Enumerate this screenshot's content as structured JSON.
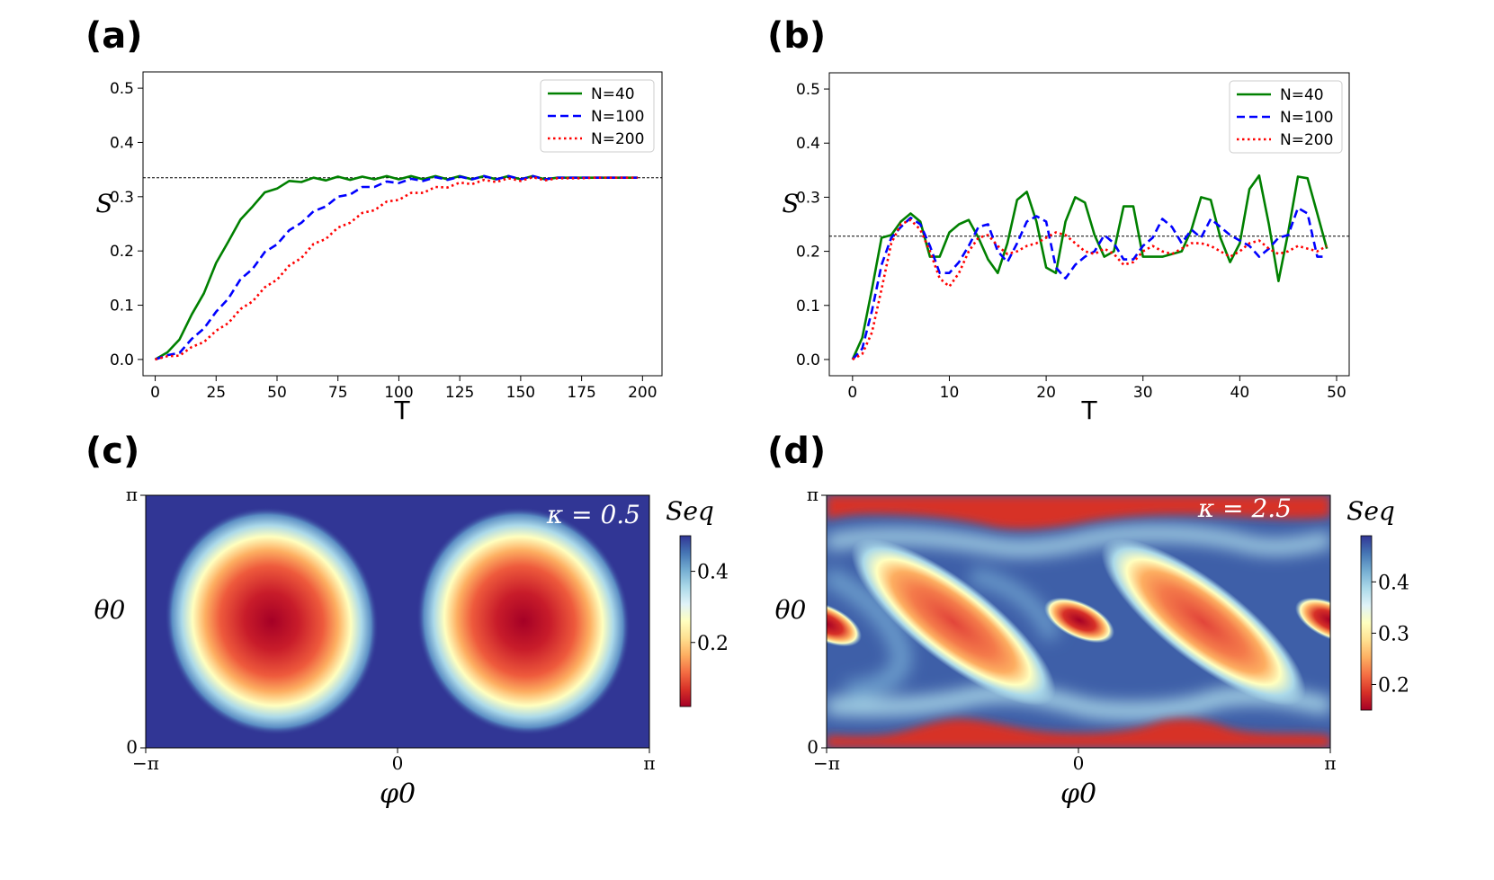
{
  "chart_data": [
    {
      "panel": "(a)",
      "type": "line",
      "xlabel": "T",
      "ylabel": "S",
      "xlim": [
        -5,
        208
      ],
      "ylim": [
        -0.03,
        0.53
      ],
      "xticks": [
        0,
        25,
        50,
        75,
        100,
        125,
        150,
        175,
        200
      ],
      "yticks": [
        0.0,
        0.1,
        0.2,
        0.3,
        0.4,
        0.5
      ],
      "xtick_labels": [
        "0",
        "25",
        "50",
        "75",
        "100",
        "125",
        "150",
        "175",
        "200"
      ],
      "ytick_labels": [
        "0.0",
        "0.1",
        "0.2",
        "0.3",
        "0.4",
        "0.5"
      ],
      "reference_line_y": 0.335,
      "legend_position": "top-right",
      "x": [
        0,
        5,
        10,
        15,
        20,
        25,
        30,
        35,
        40,
        45,
        50,
        55,
        60,
        65,
        70,
        75,
        80,
        85,
        90,
        95,
        100,
        105,
        110,
        115,
        120,
        125,
        130,
        135,
        140,
        145,
        150,
        155,
        160,
        165,
        170,
        175,
        180,
        185,
        190,
        195,
        198
      ],
      "series": [
        {
          "name": "N=40",
          "color": "#008000",
          "style": "solid",
          "values": [
            0.0,
            0.01,
            0.04,
            0.08,
            0.125,
            0.175,
            0.22,
            0.255,
            0.285,
            0.305,
            0.318,
            0.326,
            0.33,
            0.332,
            0.333,
            0.334,
            0.334,
            0.334,
            0.335,
            0.335,
            0.335,
            0.335,
            0.335,
            0.335,
            0.335,
            0.335,
            0.335,
            0.335,
            0.335,
            0.335,
            0.335,
            0.335,
            0.335,
            0.335,
            0.335,
            0.335,
            0.335,
            0.335,
            0.335,
            0.335,
            0.335
          ]
        },
        {
          "name": "N=100",
          "color": "#0000ff",
          "style": "dashed",
          "values": [
            0.0,
            0.005,
            0.015,
            0.035,
            0.06,
            0.085,
            0.115,
            0.145,
            0.17,
            0.195,
            0.215,
            0.235,
            0.255,
            0.27,
            0.285,
            0.297,
            0.307,
            0.315,
            0.321,
            0.325,
            0.328,
            0.33,
            0.332,
            0.333,
            0.334,
            0.334,
            0.335,
            0.335,
            0.335,
            0.335,
            0.335,
            0.335,
            0.335,
            0.335,
            0.335,
            0.335,
            0.335,
            0.335,
            0.335,
            0.335,
            0.335
          ]
        },
        {
          "name": "N=200",
          "color": "#ff0000",
          "style": "dotted",
          "values": [
            0.0,
            0.003,
            0.01,
            0.02,
            0.035,
            0.05,
            0.07,
            0.09,
            0.11,
            0.13,
            0.15,
            0.17,
            0.19,
            0.21,
            0.225,
            0.24,
            0.255,
            0.267,
            0.278,
            0.288,
            0.297,
            0.304,
            0.31,
            0.315,
            0.32,
            0.323,
            0.326,
            0.328,
            0.33,
            0.331,
            0.332,
            0.333,
            0.333,
            0.334,
            0.334,
            0.334,
            0.335,
            0.335,
            0.335,
            0.335,
            0.335
          ]
        }
      ]
    },
    {
      "panel": "(b)",
      "type": "line",
      "xlabel": "T",
      "ylabel": "S",
      "xlim": [
        -2.4,
        51.3
      ],
      "ylim": [
        -0.03,
        0.53
      ],
      "xticks": [
        0,
        10,
        20,
        30,
        40,
        50
      ],
      "yticks": [
        0.0,
        0.1,
        0.2,
        0.3,
        0.4,
        0.5
      ],
      "xtick_labels": [
        "0",
        "10",
        "20",
        "30",
        "40",
        "50"
      ],
      "ytick_labels": [
        "0.0",
        "0.1",
        "0.2",
        "0.3",
        "0.4",
        "0.5"
      ],
      "reference_line_y": 0.228,
      "legend_position": "top-right",
      "x": [
        0,
        1,
        2,
        3,
        4,
        5,
        6,
        7,
        8,
        9,
        10,
        11,
        12,
        13,
        14,
        15,
        16,
        17,
        18,
        19,
        20,
        21,
        22,
        23,
        24,
        25,
        26,
        27,
        28,
        29,
        30,
        31,
        32,
        33,
        34,
        35,
        36,
        37,
        38,
        39,
        40,
        41,
        42,
        43,
        44,
        45,
        46,
        47,
        48,
        49
      ],
      "series": [
        {
          "name": "N=40",
          "color": "#008000",
          "style": "solid",
          "values": [
            0.0,
            0.04,
            0.13,
            0.225,
            0.23,
            0.255,
            0.27,
            0.255,
            0.19,
            0.19,
            0.235,
            0.25,
            0.258,
            0.225,
            0.185,
            0.16,
            0.215,
            0.295,
            0.31,
            0.255,
            0.17,
            0.16,
            0.255,
            0.3,
            0.29,
            0.23,
            0.19,
            0.2,
            0.283,
            0.283,
            0.19,
            0.19,
            0.19,
            0.195,
            0.2,
            0.24,
            0.3,
            0.295,
            0.225,
            0.18,
            0.215,
            0.315,
            0.34,
            0.25,
            0.145,
            0.235,
            0.338,
            0.335,
            0.27,
            0.205
          ]
        },
        {
          "name": "N=100",
          "color": "#0000ff",
          "style": "dashed",
          "values": [
            0.0,
            0.02,
            0.09,
            0.175,
            0.225,
            0.245,
            0.262,
            0.25,
            0.21,
            0.16,
            0.16,
            0.18,
            0.21,
            0.245,
            0.25,
            0.2,
            0.18,
            0.215,
            0.255,
            0.265,
            0.255,
            0.17,
            0.15,
            0.175,
            0.19,
            0.2,
            0.23,
            0.215,
            0.185,
            0.185,
            0.21,
            0.225,
            0.26,
            0.245,
            0.215,
            0.24,
            0.225,
            0.26,
            0.245,
            0.23,
            0.22,
            0.21,
            0.19,
            0.205,
            0.225,
            0.23,
            0.28,
            0.27,
            0.19,
            0.19
          ]
        },
        {
          "name": "N=200",
          "color": "#ff0000",
          "style": "dotted",
          "values": [
            0.0,
            0.01,
            0.05,
            0.13,
            0.215,
            0.25,
            0.258,
            0.24,
            0.2,
            0.15,
            0.135,
            0.16,
            0.2,
            0.225,
            0.23,
            0.21,
            0.195,
            0.2,
            0.21,
            0.215,
            0.225,
            0.235,
            0.23,
            0.215,
            0.2,
            0.195,
            0.205,
            0.195,
            0.175,
            0.18,
            0.2,
            0.21,
            0.2,
            0.195,
            0.205,
            0.215,
            0.215,
            0.21,
            0.2,
            0.19,
            0.2,
            0.215,
            0.22,
            0.205,
            0.195,
            0.2,
            0.21,
            0.205,
            0.2,
            0.21
          ]
        }
      ]
    },
    {
      "panel": "(c)",
      "type": "heatmap",
      "xlabel": "φ0",
      "ylabel": "θ0",
      "xtick_labels": [
        "−π",
        "0",
        "π"
      ],
      "ytick_labels": [
        "0",
        "π"
      ],
      "annotation": "κ = 0.5",
      "colorbar_label": "S_eq",
      "colorbar_title": "Seq",
      "colorbar_range": [
        0.02,
        0.5
      ],
      "colorbar_ticks": [
        0.2,
        0.4
      ],
      "colorbar_tick_labels": [
        "0.2",
        "0.4"
      ],
      "colormap": "RdYlBu",
      "description_features": "two oval low-value (red) regions centered near φ0 = ±π/2, θ0 = π/2 on a high-value (blue) background"
    },
    {
      "panel": "(d)",
      "type": "heatmap",
      "xlabel": "φ0",
      "ylabel": "θ0",
      "xtick_labels": [
        "−π",
        "0",
        "π"
      ],
      "ytick_labels": [
        "0",
        "π"
      ],
      "annotation": "κ = 2.5",
      "colorbar_label": "S_eq",
      "colorbar_title": "Seq",
      "colorbar_range": [
        0.15,
        0.49
      ],
      "colorbar_ticks": [
        0.2,
        0.3,
        0.4
      ],
      "colorbar_tick_labels": [
        "0.2",
        "0.3",
        "0.4"
      ],
      "colormap": "RdYlBu",
      "description_features": "diagonal red bands, small red islands at φ0 = 0 and ±π near θ0 = π/2, red strips near θ0 = 0 and θ0 = π"
    }
  ],
  "panel_labels": [
    "(a)",
    "(b)",
    "(c)",
    "(d)"
  ]
}
